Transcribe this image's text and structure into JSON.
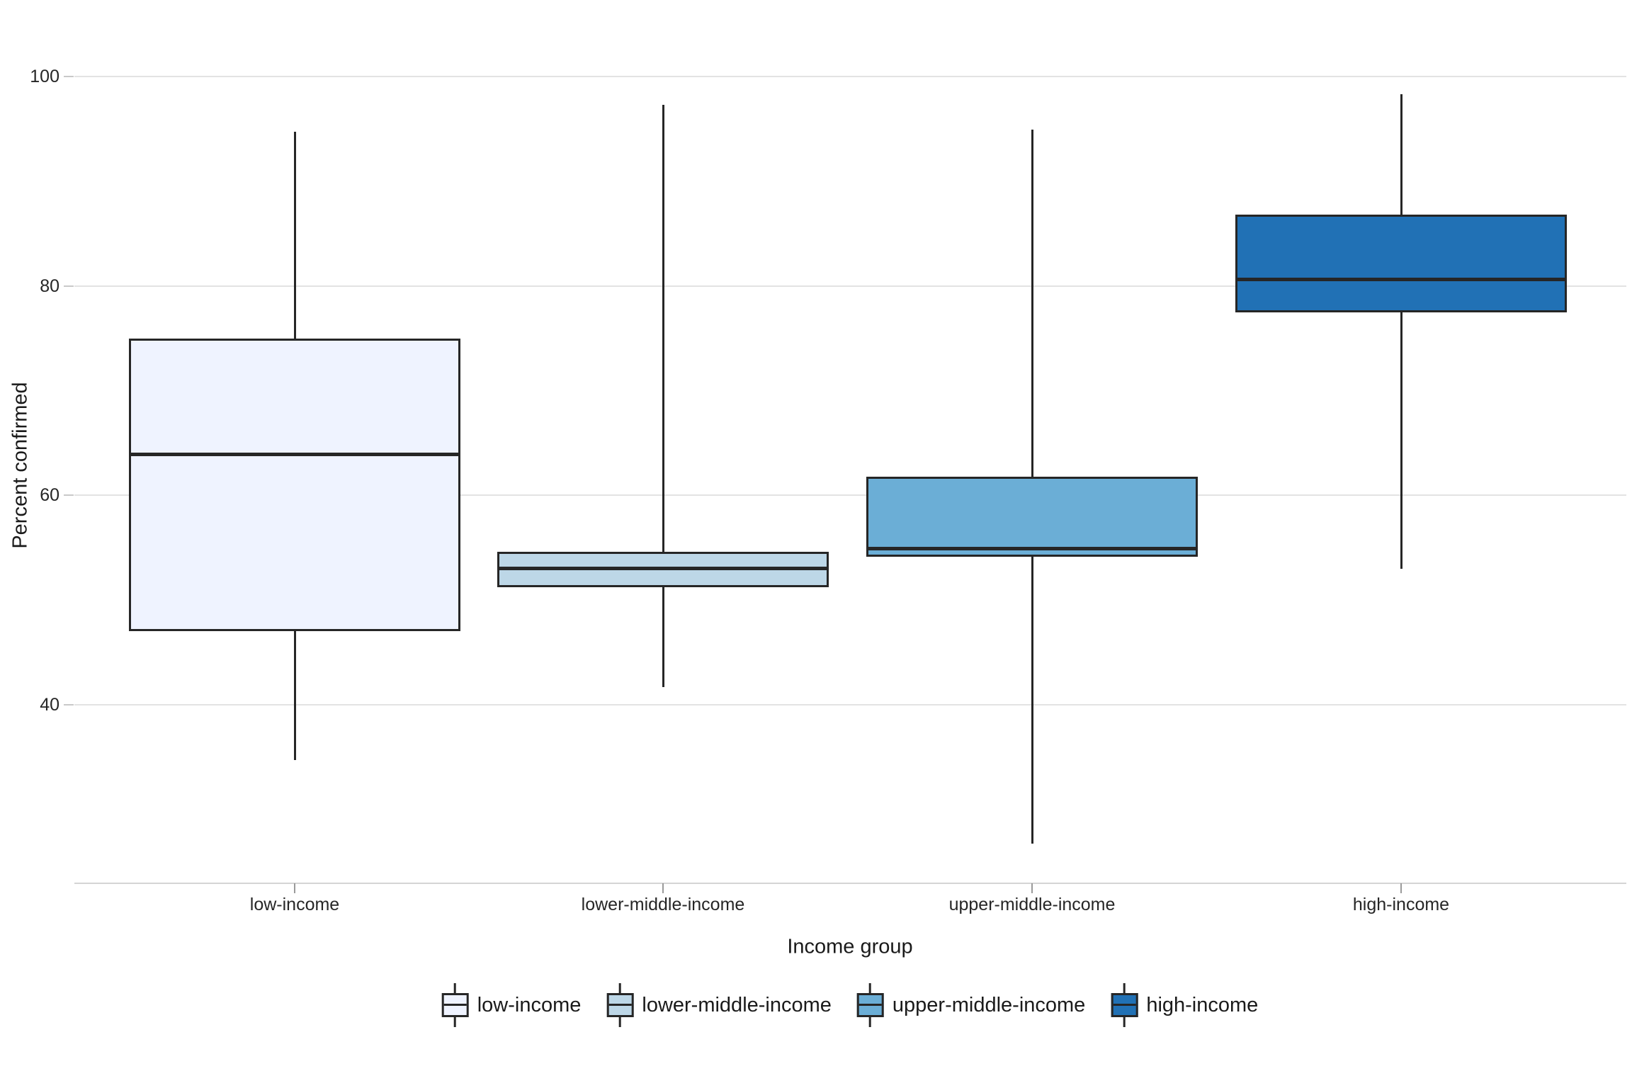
{
  "chart_data": {
    "type": "boxplot",
    "title": "",
    "xlabel": "Income group",
    "ylabel": "Percent confirmed",
    "y_ticks": [
      40,
      60,
      80,
      100
    ],
    "ylim_visible": [
      23,
      105
    ],
    "grid": "horizontal-major-only",
    "legend_position": "bottom",
    "orientation": "vertical",
    "categories": [
      "low-income",
      "lower-middle-income",
      "upper-middle-income",
      "high-income"
    ],
    "series": [
      {
        "name": "low-income",
        "min": 34.7,
        "q1": 47.0,
        "median": 63.9,
        "q3": 75.0,
        "max": 94.7,
        "fill": "#EFF3FF"
      },
      {
        "name": "lower-middle-income",
        "min": 41.7,
        "q1": 51.2,
        "median": 53.0,
        "q3": 54.6,
        "max": 97.3,
        "fill": "#BDD7E7"
      },
      {
        "name": "upper-middle-income",
        "min": 26.7,
        "q1": 54.1,
        "median": 54.9,
        "q3": 61.8,
        "max": 94.9,
        "fill": "#6BAED6"
      },
      {
        "name": "high-income",
        "min": 53.0,
        "q1": 77.5,
        "median": 80.6,
        "q3": 86.8,
        "max": 98.3,
        "fill": "#2171B5"
      }
    ],
    "colors": {
      "box_border": "#262626",
      "median_line": "#262626",
      "whisker": "#262626",
      "gridline": "#e3e3e3",
      "axis_line": "#d4d4d4",
      "text": "#262626",
      "background": "#ffffff"
    }
  },
  "legend": {
    "items": [
      {
        "label": "low-income",
        "fill": "#EFF3FF"
      },
      {
        "label": "lower-middle-income",
        "fill": "#BDD7E7"
      },
      {
        "label": "upper-middle-income",
        "fill": "#6BAED6"
      },
      {
        "label": "high-income",
        "fill": "#2171B5"
      }
    ]
  }
}
